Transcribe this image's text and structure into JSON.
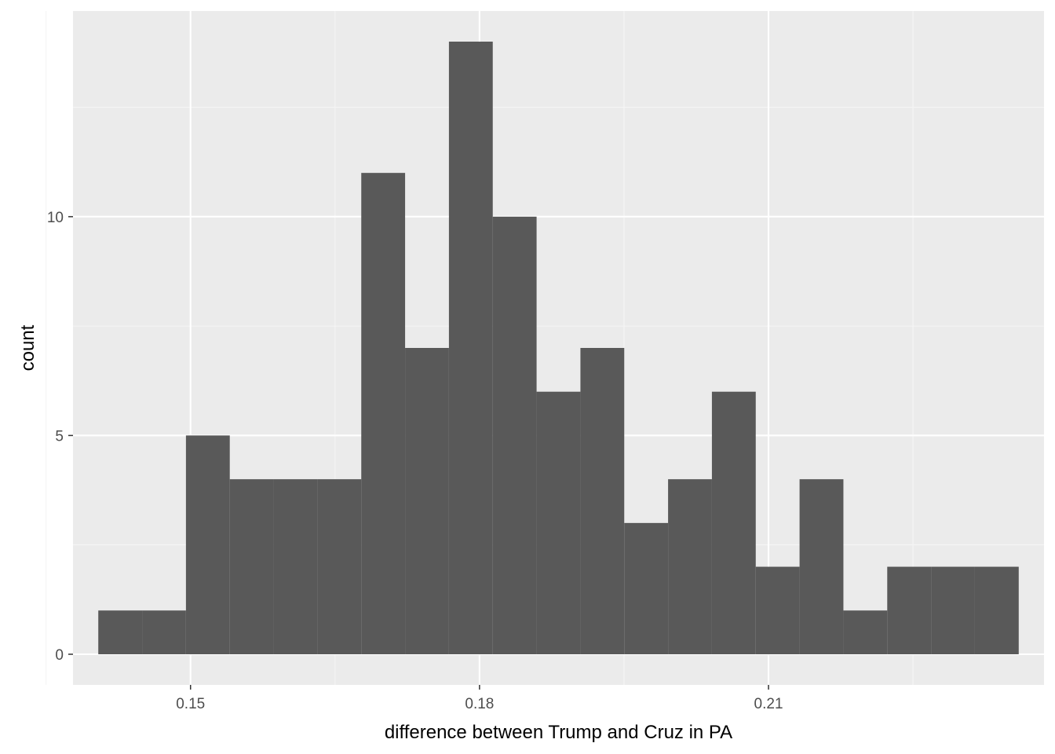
{
  "chart_data": {
    "type": "bar",
    "subtype": "histogram",
    "title": "",
    "xlabel": "difference between Trump and Cruz in PA",
    "ylabel": "count",
    "bin_width": 0.00455,
    "bins": [
      {
        "x": 0.1427,
        "count": 1
      },
      {
        "x": 0.14725,
        "count": 1
      },
      {
        "x": 0.1518,
        "count": 5
      },
      {
        "x": 0.15635,
        "count": 4
      },
      {
        "x": 0.1609,
        "count": 4
      },
      {
        "x": 0.16545,
        "count": 4
      },
      {
        "x": 0.17,
        "count": 11
      },
      {
        "x": 0.17455,
        "count": 7
      },
      {
        "x": 0.1791,
        "count": 14
      },
      {
        "x": 0.18365,
        "count": 10
      },
      {
        "x": 0.1882,
        "count": 6
      },
      {
        "x": 0.19275,
        "count": 7
      },
      {
        "x": 0.1973,
        "count": 3
      },
      {
        "x": 0.20185,
        "count": 4
      },
      {
        "x": 0.2064,
        "count": 6
      },
      {
        "x": 0.21095,
        "count": 2
      },
      {
        "x": 0.2155,
        "count": 4
      },
      {
        "x": 0.22005,
        "count": 1
      },
      {
        "x": 0.2246,
        "count": 2
      },
      {
        "x": 0.22915,
        "count": 2
      },
      {
        "x": 0.2337,
        "count": 2
      }
    ],
    "xlim": [
      0.1378,
      0.2386
    ],
    "ylim": [
      -0.7,
      14.7
    ],
    "x_ticks": [
      0.15,
      0.18,
      0.21
    ],
    "x_tick_labels": [
      "0.15",
      "0.18",
      "0.21"
    ],
    "x_minor_ticks": [
      0.135,
      0.165,
      0.195,
      0.225
    ],
    "y_ticks": [
      0,
      5,
      10
    ],
    "y_tick_labels": [
      "0",
      "5",
      "10"
    ],
    "y_minor_ticks": [
      2.5,
      7.5,
      12.5
    ],
    "grid": true,
    "legend": "none",
    "colors": {
      "panel_background": "#EBEBEB",
      "grid_major": "#FFFFFF",
      "grid_minor": "#F5F5F5",
      "bar_fill": "#595959",
      "tick_label": "#4D4D4D",
      "axis_title": "#000000"
    }
  }
}
